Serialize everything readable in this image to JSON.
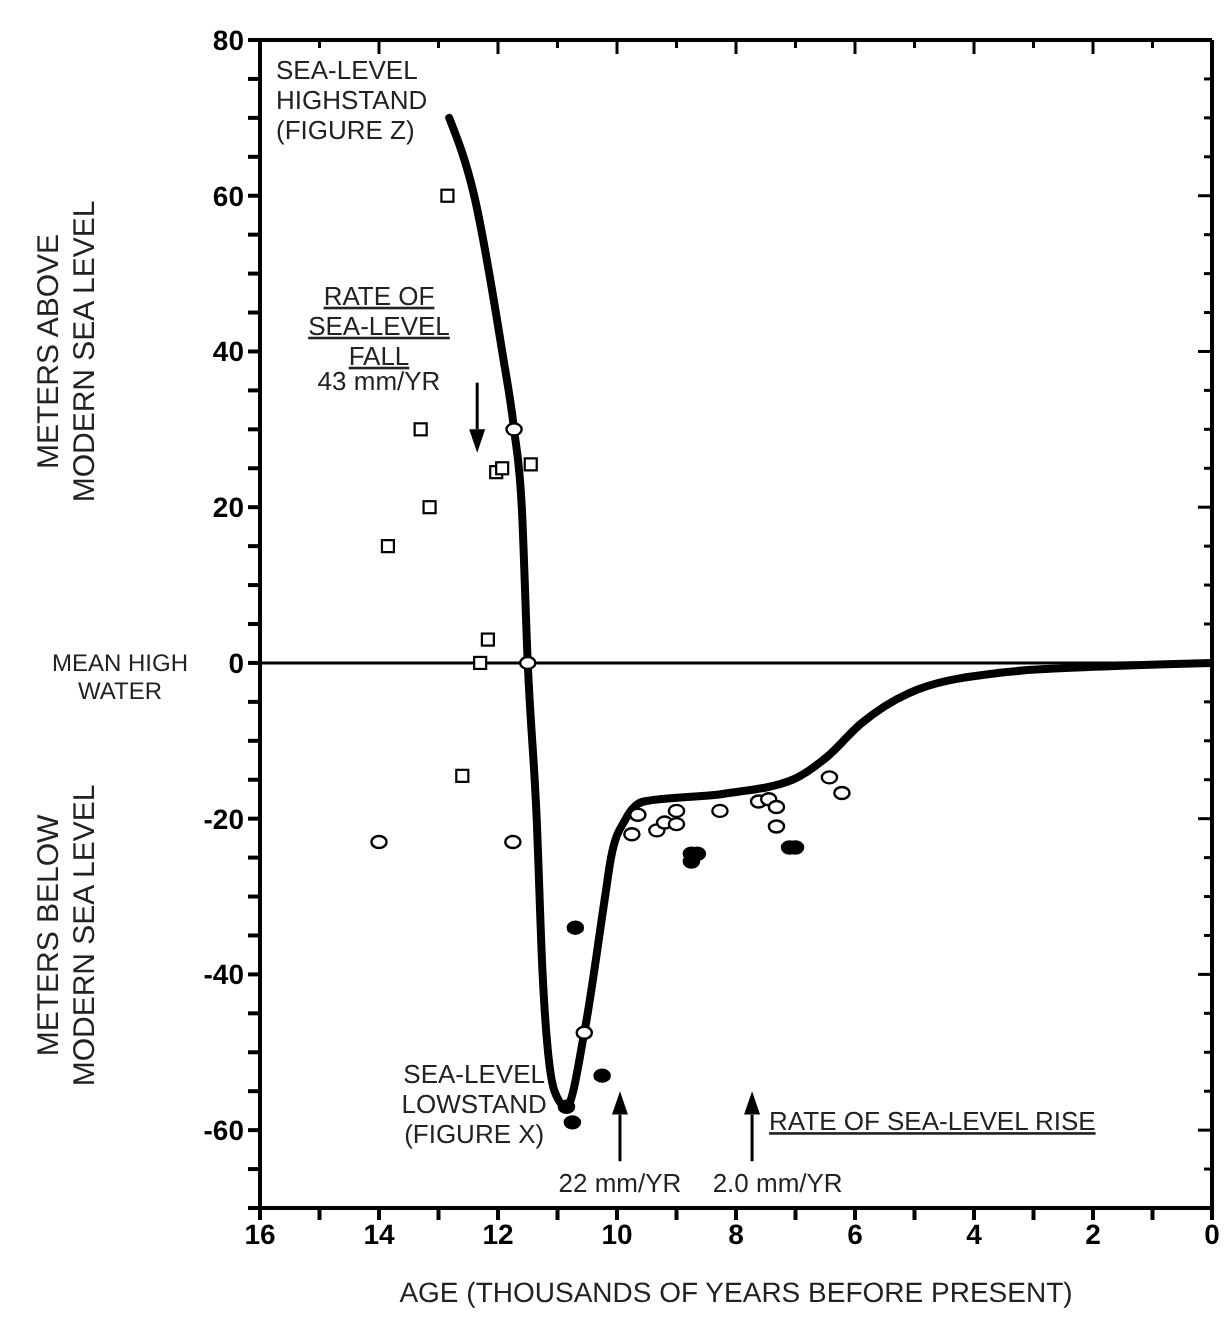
{
  "chart_data": {
    "type": "scatter",
    "xlabel": "AGE (THOUSANDS OF YEARS BEFORE PRESENT)",
    "ylabel": "METERS ABOVE MODERN SEA LEVEL",
    "annotations": [
      "METERS BELOW MODERN SEA LEVEL",
      "MEAN HIGH WATER",
      "SEA-LEVEL HIGHSTAND (FIGURE Z)",
      "RATE OF SEA-LEVEL FALL",
      "43 mm/YR",
      "SEA-LEVEL LOWSTAND (FIGURE X)",
      "22 mm/YR",
      "2.0 mm/YR",
      "RATE OF SEA-LEVEL RISE"
    ],
    "xlim": [
      16,
      0
    ],
    "xticks": [
      16,
      {
        "value": 15,
        "label": null
      },
      14,
      {
        "value": 13,
        "label": null
      },
      12,
      {
        "value": 11,
        "label": null
      },
      10,
      {
        "value": 9,
        "label": null
      },
      8,
      {
        "value": 7,
        "label": null
      },
      6,
      {
        "value": 5,
        "label": null
      },
      4,
      {
        "value": 3,
        "label": null
      },
      2,
      {
        "value": 1,
        "label": null
      },
      0
    ],
    "ylim": [
      -70,
      80
    ],
    "yticks": [
      {
        "value": -70,
        "label": null
      },
      {
        "value": -65,
        "label": null
      },
      -60,
      {
        "value": -55,
        "label": null
      },
      {
        "value": -50,
        "label": null
      },
      {
        "value": -45,
        "label": null
      },
      -40,
      {
        "value": -35,
        "label": null
      },
      {
        "value": -30,
        "label": null
      },
      {
        "value": -25,
        "label": null
      },
      -20,
      {
        "value": -15,
        "label": null
      },
      {
        "value": -10,
        "label": null
      },
      {
        "value": -5,
        "label": null
      },
      0,
      {
        "value": 5,
        "label": null
      },
      {
        "value": 10,
        "label": null
      },
      {
        "value": 15,
        "label": null
      },
      20,
      {
        "value": 25,
        "label": null
      },
      {
        "value": 30,
        "label": null
      },
      {
        "value": 35,
        "label": null
      },
      40,
      {
        "value": 45,
        "label": null
      },
      {
        "value": 50,
        "label": null
      },
      {
        "value": 55,
        "label": null
      },
      60,
      {
        "value": 65,
        "label": null
      },
      {
        "value": 70,
        "label": null
      },
      {
        "value": 75,
        "label": null
      },
      80
    ],
    "ref_lines": [
      {
        "axis": "y",
        "value": 0,
        "color": "#000000"
      }
    ],
    "series": [
      {
        "type": "line",
        "color": "#000000",
        "marker": "none",
        "x": [
          12.82,
          12.4,
          11.93,
          11.73,
          11.6,
          11.5,
          11.35,
          11.25,
          11.05,
          10.85,
          10.55,
          10.2,
          10.1,
          9.85,
          9.55,
          8.2,
          7.05,
          6.46,
          5.9,
          5.1,
          3.6,
          2.0,
          0
        ],
        "values": [
          70,
          60,
          40,
          30,
          20,
          0,
          -20,
          -40,
          -55,
          -57,
          -47.5,
          -30,
          -25,
          -20,
          -17.8,
          -16.8,
          -15,
          -12,
          -7.8,
          -3.9,
          -1.3,
          -0.5,
          0
        ]
      },
      {
        "color": "#ffffff",
        "marker": "square",
        "x": [
          12.85,
          13.3,
          13.15,
          13.85,
          12.03,
          11.93,
          11.45,
          12.17,
          12.3,
          12.6
        ],
        "values": [
          60,
          30,
          20,
          15,
          24.5,
          25,
          25.5,
          3,
          0,
          -14.5
        ]
      },
      {
        "color": "#ffffff",
        "marker": "circle",
        "x": [
          11.73,
          11.5,
          14.0,
          11.75,
          10.55,
          9.75,
          9.65,
          9.33,
          9.2,
          9.0,
          9.0,
          8.27,
          7.62,
          7.45,
          7.32,
          7.32,
          6.43,
          6.22
        ],
        "values": [
          30,
          0,
          -23,
          -23,
          -47.5,
          -22,
          -19.5,
          -21.5,
          -20.5,
          -20.7,
          -19,
          -19,
          -17.8,
          -17.5,
          -18.5,
          -21,
          -14.7,
          -16.7
        ]
      },
      {
        "color": "#000000",
        "marker": "circle",
        "x": [
          10.7,
          10.25,
          10.75,
          10.85,
          8.75,
          8.75,
          8.65,
          7.1,
          7.0
        ],
        "values": [
          -34,
          -53,
          -59,
          -57,
          -24.5,
          -25.5,
          -24.5,
          -23.7,
          -23.7
        ]
      }
    ]
  }
}
